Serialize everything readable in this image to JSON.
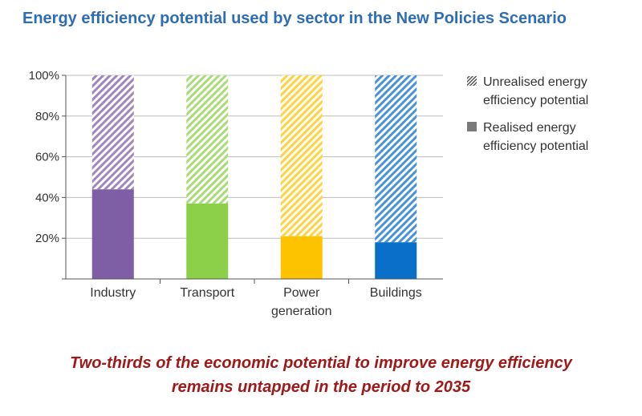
{
  "title": "Energy efficiency potential used by sector in the New Policies Scenario",
  "caption": {
    "line1": "Two-thirds of the economic potential to improve energy efficiency",
    "line2": "remains untapped in the period to 2035"
  },
  "chart_data": {
    "type": "bar",
    "stacked": true,
    "title": "Energy efficiency potential used by sector in the New Policies Scenario",
    "xlabel": "",
    "ylabel": "",
    "ylim": [
      0,
      100
    ],
    "y_unit": "%",
    "y_ticks": [
      20,
      40,
      60,
      80,
      100
    ],
    "y_tick_labels": [
      "20%",
      "40%",
      "60%",
      "80%",
      "100%"
    ],
    "grid": true,
    "legend_position": "right",
    "categories": [
      {
        "label_lines": [
          "Industry"
        ],
        "color": "#7E5FA6"
      },
      {
        "label_lines": [
          "Transport"
        ],
        "color": "#8CCF49"
      },
      {
        "label_lines": [
          "Power",
          "generation"
        ],
        "color": "#FDC200"
      },
      {
        "label_lines": [
          "Buildings"
        ],
        "color": "#0A6FC8"
      }
    ],
    "series": [
      {
        "name": "Realised energy efficiency potential",
        "legend_lines": [
          "Realised energy",
          "efficiency potential"
        ],
        "style": "solid",
        "values": [
          44,
          37,
          21,
          18
        ]
      },
      {
        "name": "Unrealised energy efficiency potential",
        "legend_lines": [
          "Unrealised energy",
          "efficiency potential"
        ],
        "style": "hatched",
        "values": [
          56,
          63,
          79,
          82
        ]
      }
    ]
  }
}
